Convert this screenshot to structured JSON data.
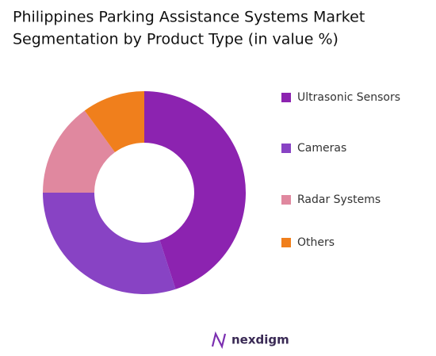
{
  "chart_data": {
    "type": "pie",
    "title": [
      "Philippines Parking Assistance Systems Market",
      "Segmentation by Product Type (in value %)"
    ],
    "categories": [
      "Ultrasonic Sensors",
      "Cameras",
      "Radar Systems",
      "Others"
    ],
    "values": [
      45,
      30,
      15,
      10
    ],
    "colors": [
      "#8c23b0",
      "#8843c4",
      "#e0889f",
      "#f07f1c"
    ],
    "donut": true,
    "legend": "right"
  },
  "logo_text": "nexdigm"
}
